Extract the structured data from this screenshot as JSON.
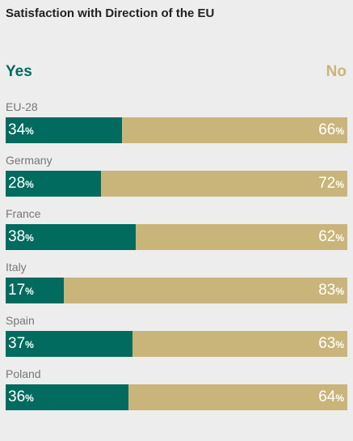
{
  "chart_data": {
    "type": "bar",
    "stacked": true,
    "orientation": "horizontal",
    "title": "Satisfaction with Direction of the EU",
    "categories": [
      "EU-28",
      "Germany",
      "France",
      "Italy",
      "Spain",
      "Poland"
    ],
    "series": [
      {
        "name": "Yes",
        "color": "#006b5e",
        "values": [
          34,
          28,
          38,
          17,
          37,
          36
        ]
      },
      {
        "name": "No",
        "color": "#c9b57a",
        "values": [
          66,
          72,
          62,
          83,
          63,
          64
        ]
      }
    ],
    "unit": "%",
    "xlim": [
      0,
      100
    ],
    "legend": "top",
    "grid": false
  }
}
